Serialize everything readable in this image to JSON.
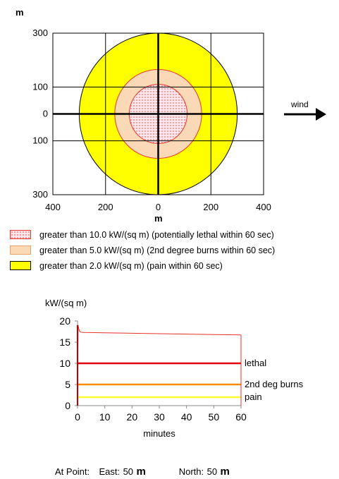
{
  "chart_data": [
    {
      "type": "contour",
      "x_unit": "m",
      "y_unit": "m",
      "xlim": [
        -400,
        400
      ],
      "ylim": [
        -300,
        300
      ],
      "x_ticks": [
        "400",
        "200",
        "0",
        "200",
        "400"
      ],
      "y_ticks": [
        "300",
        "100",
        "0",
        "100",
        "300"
      ],
      "grid": true,
      "zones": [
        {
          "label": "greater than 10.0 kW/(sq m) (potentially lethal within 60 sec)",
          "radius_m": 110,
          "fill": "#fde6ec",
          "stroke": "#e8322a",
          "pattern": "dotted"
        },
        {
          "label": "greater than 5.0 kW/(sq m) (2nd degree burns within 60 sec)",
          "radius_m": 165,
          "fill": "#fcd9b6",
          "stroke": "#e8322a"
        },
        {
          "label": "greater than 2.0 kW/(sq m) (pain within 60 sec)",
          "radius_m": 300,
          "fill": "#ffff00",
          "stroke": "#000000"
        }
      ],
      "wind_label": "wind"
    },
    {
      "type": "line",
      "ylabel": "kW/(sq m)",
      "xlabel": "minutes",
      "xlim": [
        0,
        60
      ],
      "ylim": [
        0,
        20
      ],
      "x_ticks": [
        0,
        10,
        20,
        30,
        40,
        50,
        60
      ],
      "y_ticks": [
        0,
        5,
        10,
        15,
        20
      ],
      "series": [
        {
          "color": "#e8322a",
          "x": [
            0,
            0.2,
            0.6,
            1,
            2,
            10,
            20,
            30,
            40,
            50,
            60
          ],
          "y": [
            0,
            19,
            17.8,
            17.4,
            17.3,
            17.2,
            17.1,
            17.0,
            16.9,
            16.8,
            16.7
          ]
        }
      ],
      "thresholds": [
        {
          "name": "lethal",
          "value": 10,
          "color": "#e0000f"
        },
        {
          "name": "2nd deg burns",
          "value": 5,
          "color": "#ff8c00"
        },
        {
          "name": "pain",
          "value": 2,
          "color": "#ffff33"
        }
      ]
    }
  ],
  "footer": {
    "label": "At Point:",
    "east_label": "East:",
    "east_value": "50",
    "north_label": "North:",
    "north_value": "50",
    "unit": "m"
  }
}
